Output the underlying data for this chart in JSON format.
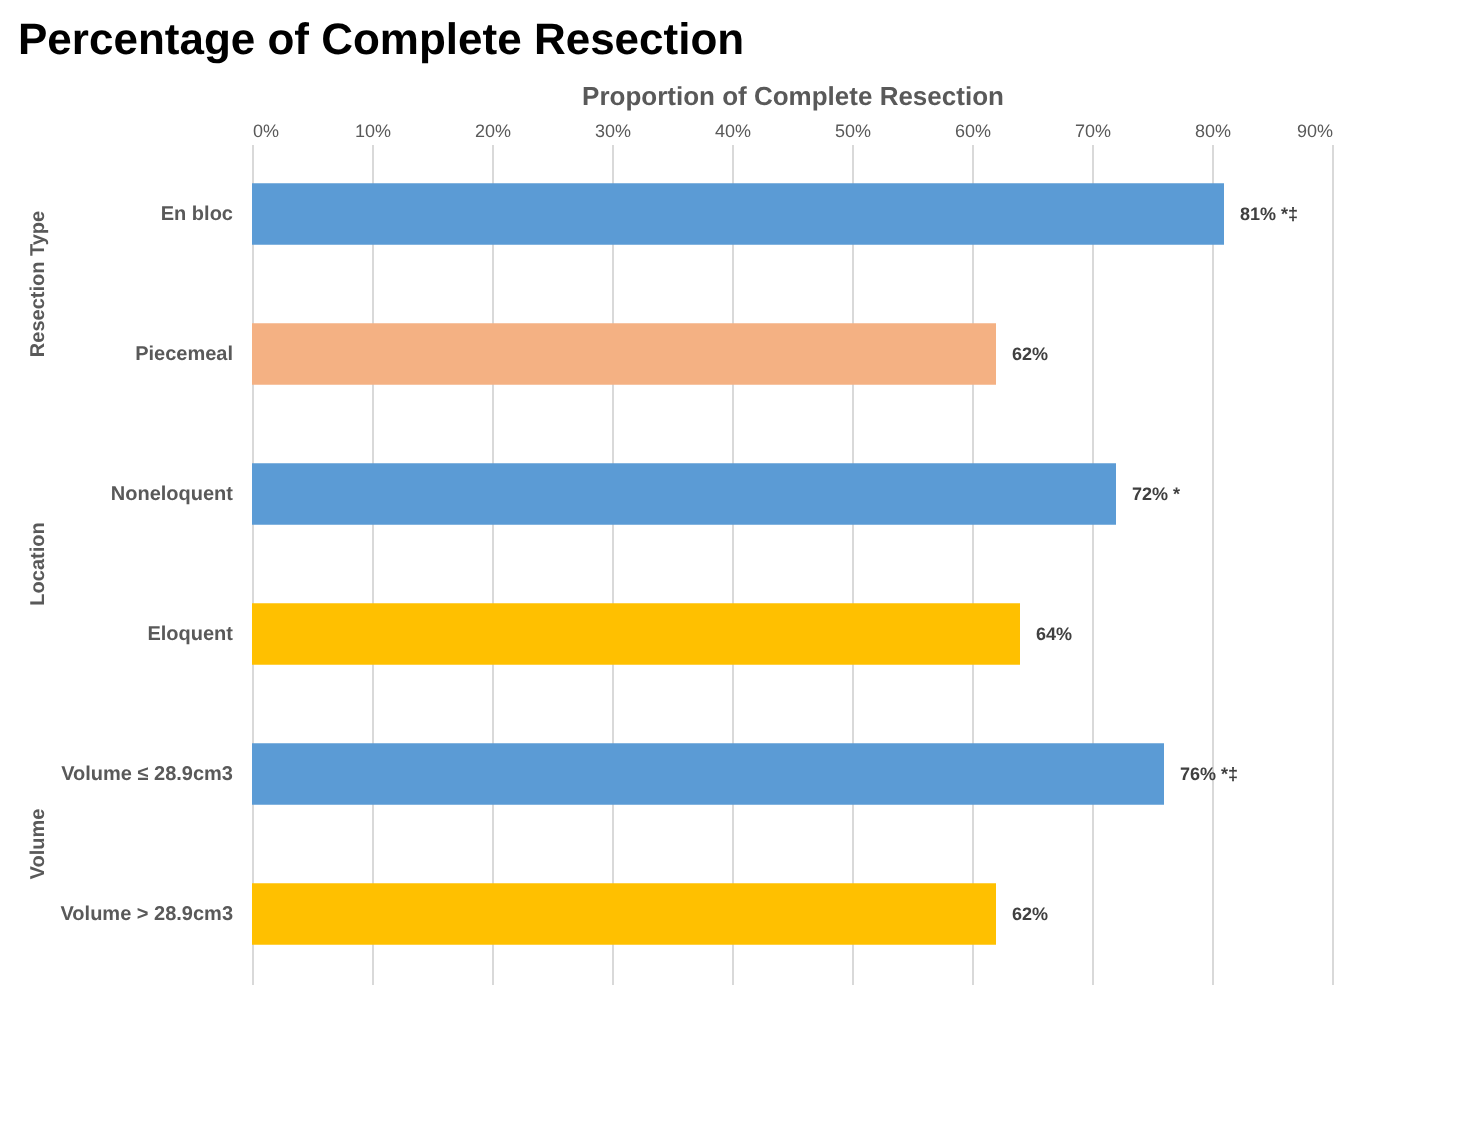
{
  "chart_data": {
    "type": "bar",
    "orientation": "horizontal",
    "title": "Percentage of Complete Resection",
    "xlabel": "Proportion of Complete Resection",
    "categories": [
      "En bloc",
      "Piecemeal",
      "Noneloquent",
      "Eloquent",
      "Volume ≤ 28.9cm3",
      "Volume > 28.9cm3"
    ],
    "values": [
      81,
      62,
      72,
      64,
      76,
      62
    ],
    "colors": [
      "#5b9bd5",
      "#f4b183",
      "#5b9bd5",
      "#ffc000",
      "#5b9bd5",
      "#ffc000"
    ],
    "value_labels": [
      "81% *‡",
      "62%",
      "72% *",
      "64%",
      "76% *‡",
      "62%"
    ],
    "xlim": [
      0,
      90
    ],
    "xticks": [
      {
        "value": 0,
        "label": "0%"
      },
      {
        "value": 10,
        "label": "10%"
      },
      {
        "value": 20,
        "label": "20%"
      },
      {
        "value": 30,
        "label": "30%"
      },
      {
        "value": 40,
        "label": "40%"
      },
      {
        "value": 50,
        "label": "50%"
      },
      {
        "value": 60,
        "label": "60%"
      },
      {
        "value": 70,
        "label": "70%"
      },
      {
        "value": 80,
        "label": "80%"
      },
      {
        "value": 90,
        "label": "90%"
      }
    ],
    "grid": "x",
    "annotations": [
      "Resection Type",
      "Location",
      "Volume"
    ]
  }
}
